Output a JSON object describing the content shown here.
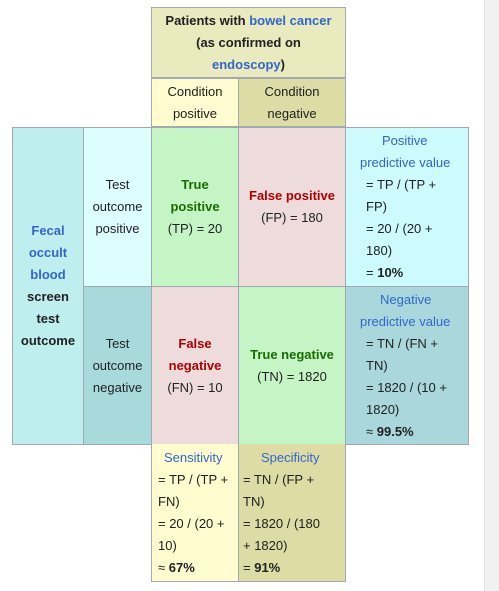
{
  "header": {
    "title_line1_prefix": "Patients with ",
    "title_line1_link": "bowel cancer",
    "title_line2": "(as confirmed on",
    "title_line3_link": "endoscopy",
    "title_line3_suffix": ")"
  },
  "condition_positive": [
    "Condition",
    "positive"
  ],
  "condition_negative": [
    "Condition",
    "negative"
  ],
  "row_label": {
    "link_words": [
      "Fecal",
      "occult",
      "blood"
    ],
    "words": [
      "screen",
      "test",
      "outcome"
    ]
  },
  "test_positive": [
    "Test",
    "outcome",
    "positive"
  ],
  "test_negative": [
    "Test",
    "outcome",
    "negative"
  ],
  "true_positive": {
    "label": [
      "True",
      "positive"
    ],
    "value": "(TP) = 20"
  },
  "false_positive": {
    "label": "False positive",
    "value": "(FP) = 180"
  },
  "false_negative": {
    "label": [
      "False",
      "negative"
    ],
    "value": "(FN) = 10"
  },
  "true_negative": {
    "label": "True negative",
    "value": "(TN) = 1820"
  },
  "ppv": {
    "title": [
      "Positive",
      "predictive value"
    ],
    "lines": [
      "= TP / (TP +",
      "FP)",
      "= 20 / (20 +",
      "180)"
    ],
    "result_prefix": "= ",
    "result": "10%"
  },
  "npv": {
    "title": [
      "Negative",
      "predictive value"
    ],
    "lines": [
      "= TN / (FN +",
      "TN)",
      "= 1820 / (10 +",
      "1820)"
    ],
    "result_prefix": "≈ ",
    "result": "99.5%"
  },
  "sensitivity": {
    "title": "Sensitivity",
    "lines": [
      "= TP / (TP +",
      "FN)",
      "= 20 / (20 +",
      "10)"
    ],
    "result_prefix": "≈ ",
    "result": "67%"
  },
  "specificity": {
    "title": "Specificity",
    "lines": [
      "= TN / (FP +",
      "TN)",
      "= 1820 / (180",
      "+ 1820)"
    ],
    "result_prefix": "= ",
    "result": "91%"
  },
  "colors": {
    "header_bg": "#eaeabf",
    "cond_pos_bg": "#fffcd0",
    "cond_neg_bg": "#dcdca4",
    "row_label_bg": "#bfeeef",
    "test_pos_bg": "#ddfeff",
    "test_neg_bg": "#a9dadb",
    "true_bg": "#c5f5c5",
    "false_bg": "#eedcdc",
    "ppv_bg": "#ccfafd",
    "npv_bg": "#a9d7dc",
    "sens_bg": "#fffcd0",
    "spec_bg": "#dcdca4"
  }
}
